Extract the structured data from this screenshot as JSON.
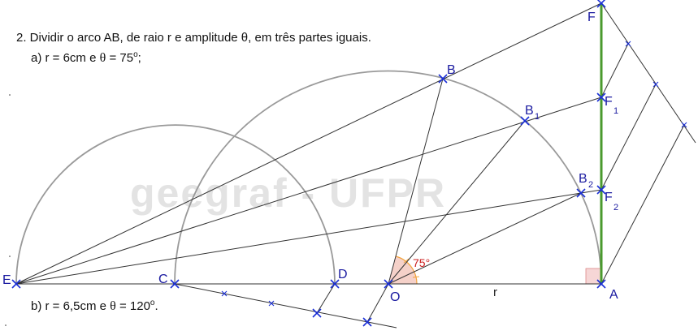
{
  "problem": {
    "heading": "2. Dividir o arco AB, de raio r e amplitude θ, em três partes iguais.",
    "part_a": {
      "prefix": "a) r = 6cm e ",
      "theta": "θ",
      "suffix": " = 75",
      "degree": "o",
      "end": ";"
    },
    "part_b": {
      "prefix": "b) r = 6,5cm e ",
      "theta": "θ",
      "suffix": " = 120",
      "degree": "o",
      "end": "."
    }
  },
  "watermark": "geegraf - UFPR",
  "figure": {
    "points": {
      "E": "E",
      "C": "C",
      "D": "D",
      "O": "O",
      "A": "A",
      "B": "B",
      "B1": "B",
      "B1_sub": "1",
      "B2": "B",
      "B2_sub": "2",
      "F": "F",
      "F1": "F",
      "F1_sub": "1",
      "F2": "F",
      "F2_sub": "2"
    },
    "radius_label": "r",
    "angle_label": "75°",
    "colors": {
      "construction": "#1a1a1a",
      "arcs": "#9a9a9a",
      "marks": "#1a2fd6",
      "segment_F": "#4a9a2e",
      "angle_fill": "#f3c9c0",
      "angle_arc": "#f2a23a",
      "right_angle": "#f6d6d6"
    }
  }
}
